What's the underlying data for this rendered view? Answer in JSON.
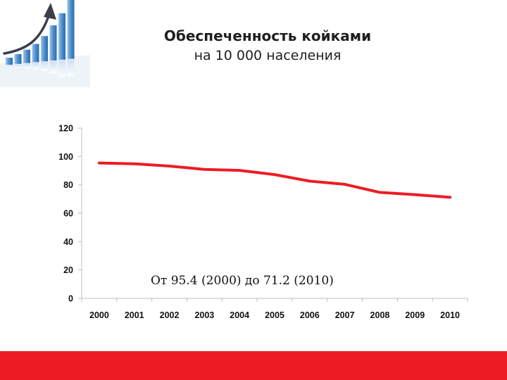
{
  "slide": {
    "title_line_1": "Обеспеченность койками",
    "title_line_2": "на 10 000 населения"
  },
  "icons": {
    "logo": "growth-bar-chart-icon"
  },
  "colors": {
    "series_line": "#ec1c24",
    "footer_bar": "#ec1c24",
    "axis": "#bfbfbf",
    "logo_bars": "#5b9bd5"
  },
  "chart_data": {
    "type": "line",
    "title": "",
    "xlabel": "",
    "ylabel": "",
    "x": [
      "2000",
      "2001",
      "2002",
      "2003",
      "2004",
      "2005",
      "2006",
      "2007",
      "2008",
      "2009",
      "2010"
    ],
    "series": [
      {
        "values": [
          95.4,
          94.8,
          93.2,
          90.9,
          90.2,
          87.2,
          82.6,
          80.4,
          74.7,
          73.1,
          71.2
        ]
      }
    ],
    "ylim": [
      0,
      120
    ],
    "yticks": [
      "0",
      "20",
      "40",
      "60",
      "80",
      "100",
      "120"
    ],
    "grid": false,
    "legend": "none",
    "annotation": "От 95.4 (2000)  до 71.2 (2010)"
  }
}
